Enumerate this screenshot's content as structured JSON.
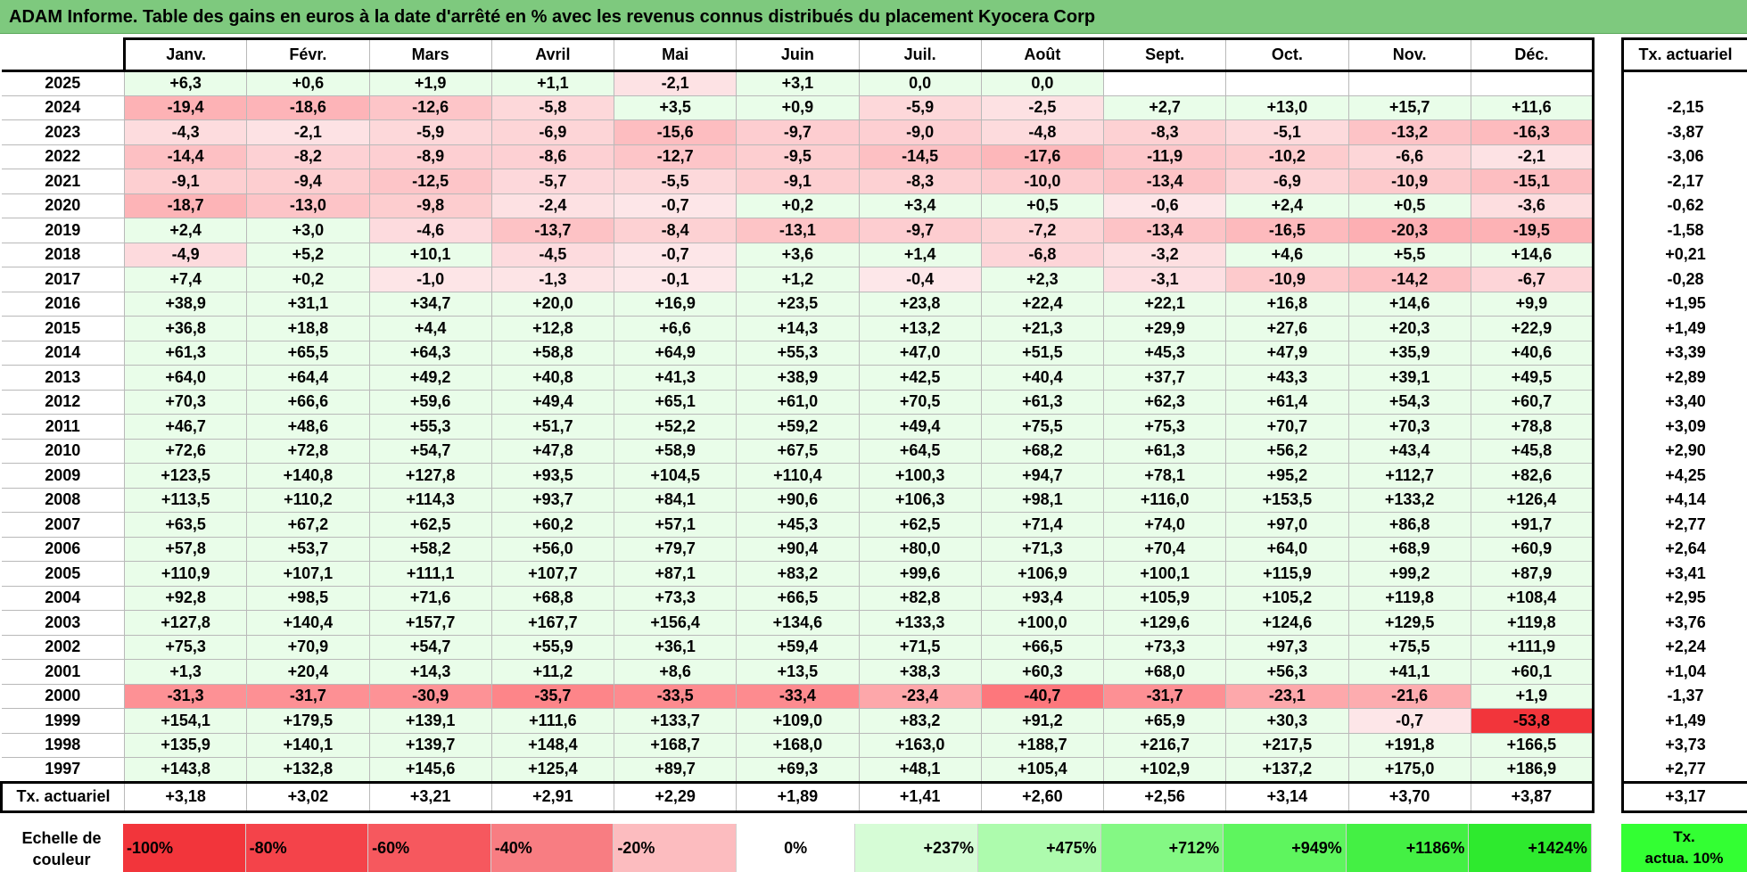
{
  "title": "ADAM Informe. Table des gains en euros à la date d'arrêté en % avec les revenus connus distribués du placement Kyocera Corp",
  "months": [
    "Janv.",
    "Févr.",
    "Mars",
    "Avril",
    "Mai",
    "Juin",
    "Juil.",
    "Août",
    "Sept.",
    "Oct.",
    "Nov.",
    "Déc."
  ],
  "actuarial_header": "Tx. actuariel",
  "rows": [
    {
      "year": "2025",
      "values": [
        "+6,3",
        "+0,6",
        "+1,9",
        "+1,1",
        "-2,1",
        "+3,1",
        "0,0",
        "0,0",
        "",
        "",
        "",
        ""
      ],
      "actuarial": ""
    },
    {
      "year": "2024",
      "values": [
        "-19,4",
        "-18,6",
        "-12,6",
        "-5,8",
        "+3,5",
        "+0,9",
        "-5,9",
        "-2,5",
        "+2,7",
        "+13,0",
        "+15,7",
        "+11,6"
      ],
      "actuarial": "-2,15"
    },
    {
      "year": "2023",
      "values": [
        "-4,3",
        "-2,1",
        "-5,9",
        "-6,9",
        "-15,6",
        "-9,7",
        "-9,0",
        "-4,8",
        "-8,3",
        "-5,1",
        "-13,2",
        "-16,3"
      ],
      "actuarial": "-3,87"
    },
    {
      "year": "2022",
      "values": [
        "-14,4",
        "-8,2",
        "-8,9",
        "-8,6",
        "-12,7",
        "-9,5",
        "-14,5",
        "-17,6",
        "-11,9",
        "-10,2",
        "-6,6",
        "-2,1"
      ],
      "actuarial": "-3,06"
    },
    {
      "year": "2021",
      "values": [
        "-9,1",
        "-9,4",
        "-12,5",
        "-5,7",
        "-5,5",
        "-9,1",
        "-8,3",
        "-10,0",
        "-13,4",
        "-6,9",
        "-10,9",
        "-15,1"
      ],
      "actuarial": "-2,17"
    },
    {
      "year": "2020",
      "values": [
        "-18,7",
        "-13,0",
        "-9,8",
        "-2,4",
        "-0,7",
        "+0,2",
        "+3,4",
        "+0,5",
        "-0,6",
        "+2,4",
        "+0,5",
        "-3,6"
      ],
      "actuarial": "-0,62"
    },
    {
      "year": "2019",
      "values": [
        "+2,4",
        "+3,0",
        "-4,6",
        "-13,7",
        "-8,4",
        "-13,1",
        "-9,7",
        "-7,2",
        "-13,4",
        "-16,5",
        "-20,3",
        "-19,5"
      ],
      "actuarial": "-1,58"
    },
    {
      "year": "2018",
      "values": [
        "-4,9",
        "+5,2",
        "+10,1",
        "-4,5",
        "-0,7",
        "+3,6",
        "+1,4",
        "-6,8",
        "-3,2",
        "+4,6",
        "+5,5",
        "+14,6"
      ],
      "actuarial": "+0,21"
    },
    {
      "year": "2017",
      "values": [
        "+7,4",
        "+0,2",
        "-1,0",
        "-1,3",
        "-0,1",
        "+1,2",
        "-0,4",
        "+2,3",
        "-3,1",
        "-10,9",
        "-14,2",
        "-6,7"
      ],
      "actuarial": "-0,28"
    },
    {
      "year": "2016",
      "values": [
        "+38,9",
        "+31,1",
        "+34,7",
        "+20,0",
        "+16,9",
        "+23,5",
        "+23,8",
        "+22,4",
        "+22,1",
        "+16,8",
        "+14,6",
        "+9,9"
      ],
      "actuarial": "+1,95"
    },
    {
      "year": "2015",
      "values": [
        "+36,8",
        "+18,8",
        "+4,4",
        "+12,8",
        "+6,6",
        "+14,3",
        "+13,2",
        "+21,3",
        "+29,9",
        "+27,6",
        "+20,3",
        "+22,9"
      ],
      "actuarial": "+1,49"
    },
    {
      "year": "2014",
      "values": [
        "+61,3",
        "+65,5",
        "+64,3",
        "+58,8",
        "+64,9",
        "+55,3",
        "+47,0",
        "+51,5",
        "+45,3",
        "+47,9",
        "+35,9",
        "+40,6"
      ],
      "actuarial": "+3,39"
    },
    {
      "year": "2013",
      "values": [
        "+64,0",
        "+64,4",
        "+49,2",
        "+40,8",
        "+41,3",
        "+38,9",
        "+42,5",
        "+40,4",
        "+37,7",
        "+43,3",
        "+39,1",
        "+49,5"
      ],
      "actuarial": "+2,89"
    },
    {
      "year": "2012",
      "values": [
        "+70,3",
        "+66,6",
        "+59,6",
        "+49,4",
        "+65,1",
        "+61,0",
        "+70,5",
        "+61,3",
        "+62,3",
        "+61,4",
        "+54,3",
        "+60,7"
      ],
      "actuarial": "+3,40"
    },
    {
      "year": "2011",
      "values": [
        "+46,7",
        "+48,6",
        "+55,3",
        "+51,7",
        "+52,2",
        "+59,2",
        "+49,4",
        "+75,5",
        "+75,3",
        "+70,7",
        "+70,3",
        "+78,8"
      ],
      "actuarial": "+3,09"
    },
    {
      "year": "2010",
      "values": [
        "+72,6",
        "+72,8",
        "+54,7",
        "+47,8",
        "+58,9",
        "+67,5",
        "+64,5",
        "+68,2",
        "+61,3",
        "+56,2",
        "+43,4",
        "+45,8"
      ],
      "actuarial": "+2,90"
    },
    {
      "year": "2009",
      "values": [
        "+123,5",
        "+140,8",
        "+127,8",
        "+93,5",
        "+104,5",
        "+110,4",
        "+100,3",
        "+94,7",
        "+78,1",
        "+95,2",
        "+112,7",
        "+82,6"
      ],
      "actuarial": "+4,25"
    },
    {
      "year": "2008",
      "values": [
        "+113,5",
        "+110,2",
        "+114,3",
        "+93,7",
        "+84,1",
        "+90,6",
        "+106,3",
        "+98,1",
        "+116,0",
        "+153,5",
        "+133,2",
        "+126,4"
      ],
      "actuarial": "+4,14"
    },
    {
      "year": "2007",
      "values": [
        "+63,5",
        "+67,2",
        "+62,5",
        "+60,2",
        "+57,1",
        "+45,3",
        "+62,5",
        "+71,4",
        "+74,0",
        "+97,0",
        "+86,8",
        "+91,7"
      ],
      "actuarial": "+2,77"
    },
    {
      "year": "2006",
      "values": [
        "+57,8",
        "+53,7",
        "+58,2",
        "+56,0",
        "+79,7",
        "+90,4",
        "+80,0",
        "+71,3",
        "+70,4",
        "+64,0",
        "+68,9",
        "+60,9"
      ],
      "actuarial": "+2,64"
    },
    {
      "year": "2005",
      "values": [
        "+110,9",
        "+107,1",
        "+111,1",
        "+107,7",
        "+87,1",
        "+83,2",
        "+99,6",
        "+106,9",
        "+100,1",
        "+115,9",
        "+99,2",
        "+87,9"
      ],
      "actuarial": "+3,41"
    },
    {
      "year": "2004",
      "values": [
        "+92,8",
        "+98,5",
        "+71,6",
        "+68,8",
        "+73,3",
        "+66,5",
        "+82,8",
        "+93,4",
        "+105,9",
        "+105,2",
        "+119,8",
        "+108,4"
      ],
      "actuarial": "+2,95"
    },
    {
      "year": "2003",
      "values": [
        "+127,8",
        "+140,4",
        "+157,7",
        "+167,7",
        "+156,4",
        "+134,6",
        "+133,3",
        "+100,0",
        "+129,6",
        "+124,6",
        "+129,5",
        "+119,8"
      ],
      "actuarial": "+3,76"
    },
    {
      "year": "2002",
      "values": [
        "+75,3",
        "+70,9",
        "+54,7",
        "+55,9",
        "+36,1",
        "+59,4",
        "+71,5",
        "+66,5",
        "+73,3",
        "+97,3",
        "+75,5",
        "+111,9"
      ],
      "actuarial": "+2,24"
    },
    {
      "year": "2001",
      "values": [
        "+1,3",
        "+20,4",
        "+14,3",
        "+11,2",
        "+8,6",
        "+13,5",
        "+38,3",
        "+60,3",
        "+68,0",
        "+56,3",
        "+41,1",
        "+60,1"
      ],
      "actuarial": "+1,04"
    },
    {
      "year": "2000",
      "values": [
        "-31,3",
        "-31,7",
        "-30,9",
        "-35,7",
        "-33,5",
        "-33,4",
        "-23,4",
        "-40,7",
        "-31,7",
        "-23,1",
        "-21,6",
        "+1,9"
      ],
      "actuarial": "-1,37"
    },
    {
      "year": "1999",
      "values": [
        "+154,1",
        "+179,5",
        "+139,1",
        "+111,6",
        "+133,7",
        "+109,0",
        "+83,2",
        "+91,2",
        "+65,9",
        "+30,3",
        "-0,7",
        "-53,8"
      ],
      "actuarial": "+1,49"
    },
    {
      "year": "1998",
      "values": [
        "+135,9",
        "+140,1",
        "+139,7",
        "+148,4",
        "+168,7",
        "+168,0",
        "+163,0",
        "+188,7",
        "+216,7",
        "+217,5",
        "+191,8",
        "+166,5"
      ],
      "actuarial": "+3,73"
    },
    {
      "year": "1997",
      "values": [
        "+143,8",
        "+132,8",
        "+145,6",
        "+125,4",
        "+89,7",
        "+69,3",
        "+48,1",
        "+105,4",
        "+102,9",
        "+137,2",
        "+175,0",
        "+186,9"
      ],
      "actuarial": "+2,77"
    }
  ],
  "totals": {
    "label": "Tx. actuariel",
    "values": [
      "+3,18",
      "+3,02",
      "+3,21",
      "+2,91",
      "+2,29",
      "+1,89",
      "+1,41",
      "+2,60",
      "+2,56",
      "+3,14",
      "+3,70",
      "+3,87"
    ],
    "overall": "+3,17"
  },
  "color_scale": {
    "label_line1": "Echelle de",
    "label_line2": "couleur",
    "steps": [
      {
        "label": "-100%",
        "color": "#f2353b"
      },
      {
        "label": "-80%",
        "color": "#f4434a"
      },
      {
        "label": "-60%",
        "color": "#f6585e"
      },
      {
        "label": "-40%",
        "color": "#f87d82"
      },
      {
        "label": "-20%",
        "color": "#fcbcbf"
      },
      {
        "label": "0%",
        "color": "#ffffff"
      },
      {
        "label": "+237%",
        "color": "#d6fcd6"
      },
      {
        "label": "+475%",
        "color": "#adfbad"
      },
      {
        "label": "+712%",
        "color": "#84f884"
      },
      {
        "label": "+949%",
        "color": "#5ef55e"
      },
      {
        "label": "+1186%",
        "color": "#44f044"
      },
      {
        "label": "+1424%",
        "color": "#2eea2e"
      }
    ],
    "actua_line1": "Tx.",
    "actua_line2": "actua. 10%",
    "actua_color": "#33ff33"
  },
  "colors": {
    "title_bar": "#7ec97e",
    "negative_strong": "#f2353b",
    "positive_light": "#e6ffe6"
  }
}
